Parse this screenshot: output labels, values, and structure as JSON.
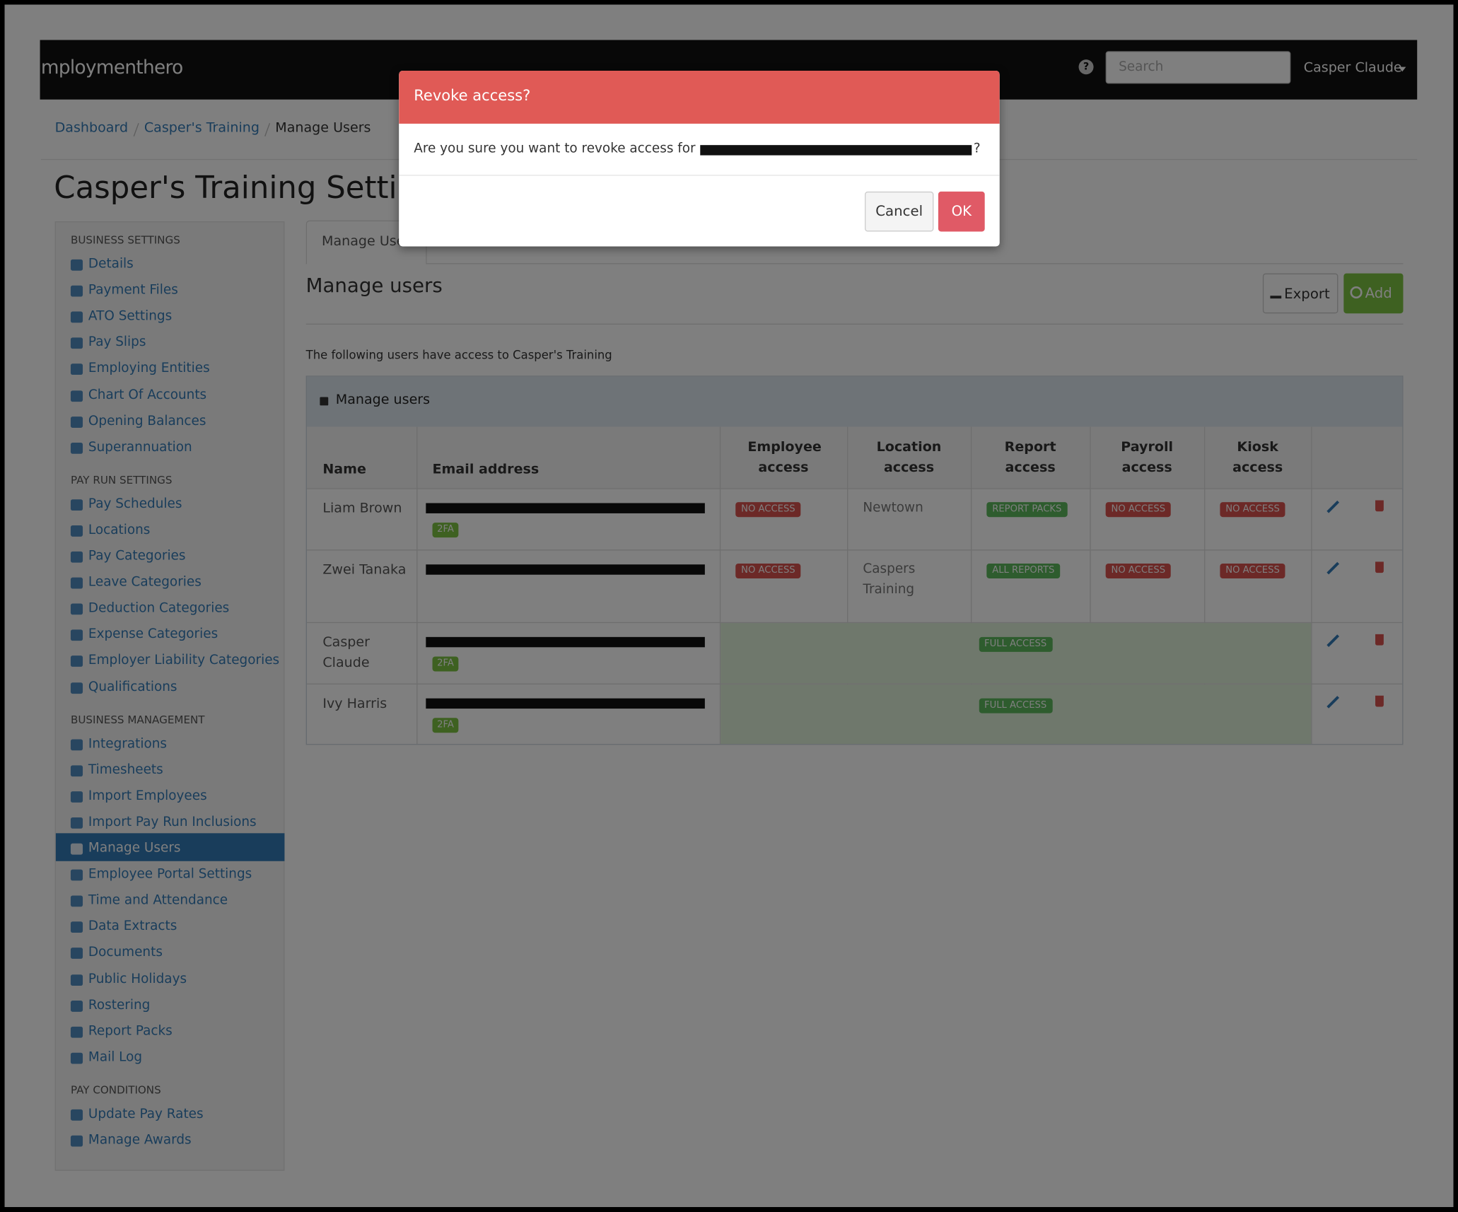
{
  "navbar": {
    "logo": "mploymenthero",
    "help_icon": "?",
    "search_placeholder": "Search",
    "user": "Casper Claude"
  },
  "breadcrumb": [
    "Dashboard",
    "Casper's Training",
    "Manage Users"
  ],
  "title": "Casper's Training Settings",
  "sidebar": [
    {
      "heading": "BUSINESS SETTINGS",
      "items": [
        "Details",
        "Payment Files",
        "ATO Settings",
        "Pay Slips",
        "Employing Entities",
        "Chart Of Accounts",
        "Opening Balances",
        "Superannuation"
      ]
    },
    {
      "heading": "PAY RUN SETTINGS",
      "items": [
        "Pay Schedules",
        "Locations",
        "Pay Categories",
        "Leave Categories",
        "Deduction Categories",
        "Expense Categories",
        "Employer Liability Categories",
        "Qualifications"
      ]
    },
    {
      "heading": "BUSINESS MANAGEMENT",
      "items": [
        "Integrations",
        "Timesheets",
        "Import Employees",
        "Import Pay Run Inclusions",
        "Manage Users",
        "Employee Portal Settings",
        "Time and Attendance",
        "Data Extracts",
        "Documents",
        "Public Holidays",
        "Rostering",
        "Report Packs",
        "Mail Log"
      ]
    },
    {
      "heading": "PAY CONDITIONS",
      "items": [
        "Update Pay Rates",
        "Manage Awards"
      ]
    }
  ],
  "active_item": {
    "section": 2,
    "item": 4
  },
  "tab": "Manage Users",
  "heading": "Manage users",
  "buttons": {
    "export": "Export",
    "add": "Add"
  },
  "description": "The following users have access to Casper's Training",
  "panel_title": "Manage users",
  "table": {
    "columns": [
      "Name",
      "Email address",
      "Employee access",
      "Location access",
      "Report access",
      "Payroll access",
      "Kiosk access"
    ],
    "rows": [
      {
        "name": "Liam Brown",
        "two_fa": "2FA",
        "employee": {
          "text": "NO ACCESS",
          "color": "#d9534f"
        },
        "location": "Newtown",
        "report": {
          "text": "REPORT PACKS",
          "color": "#5cb85c"
        },
        "payroll": {
          "text": "NO ACCESS",
          "color": "#d9534f"
        },
        "kiosk": {
          "text": "NO ACCESS",
          "color": "#d9534f"
        }
      },
      {
        "name": "Zwei Tanaka",
        "employee": {
          "text": "NO ACCESS",
          "color": "#d9534f"
        },
        "location": "Caspers Training",
        "report": {
          "text": "ALL REPORTS",
          "color": "#5cb85c"
        },
        "payroll": {
          "text": "NO ACCESS",
          "color": "#d9534f"
        },
        "kiosk": {
          "text": "NO ACCESS",
          "color": "#d9534f"
        }
      },
      {
        "name": "Casper Claude",
        "two_fa": "2FA",
        "full_access": {
          "text": "FULL ACCESS",
          "color": "#5cb85c"
        }
      },
      {
        "name": "Ivy Harris",
        "two_fa": "2FA",
        "full_access": {
          "text": "FULL ACCESS",
          "color": "#5cb85c"
        }
      }
    ]
  },
  "modal": {
    "title": "Revoke access?",
    "message": "Are you sure you want to revoke access for",
    "message_end": "?",
    "cancel": "Cancel",
    "ok": "OK"
  }
}
